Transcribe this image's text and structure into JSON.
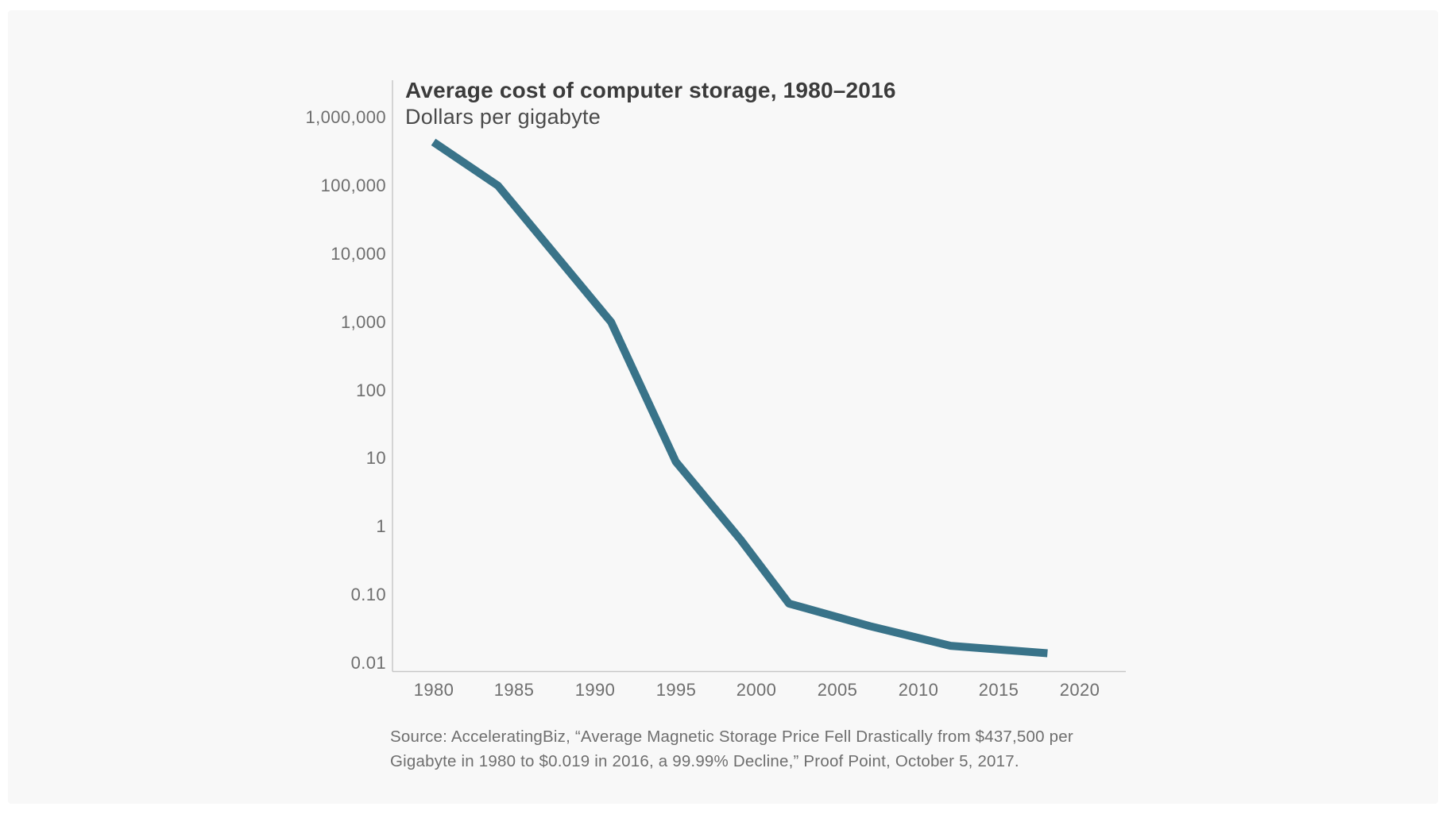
{
  "chart": {
    "title": "Average cost of computer storage, 1980–2016",
    "subtitle": "Dollars per gigabyte",
    "source_line1": "Source: AcceleratingBiz, “Average Magnetic Storage Price Fell Drastically from $437,500 per",
    "source_line2": "Gigabyte in 1980 to $0.019 in 2016, a 99.99% Decline,” Proof Point, October 5, 2017."
  },
  "chart_data": {
    "type": "line",
    "title": "Average cost of computer storage, 1980–2016",
    "subtitle": "Dollars per gigabyte",
    "series": [
      {
        "name": "Average cost of storage (dollars per gigabyte)",
        "x": [
          1980,
          1984,
          1991,
          1995,
          1999,
          2002,
          2007,
          2012,
          2018
        ],
        "y": [
          437500,
          100000,
          1000,
          9,
          0.65,
          0.075,
          0.035,
          0.018,
          0.014
        ]
      }
    ],
    "xlabel": "",
    "ylabel": "Dollars per gigabyte",
    "y_scale": "log",
    "ylim": [
      0.01,
      1000000
    ],
    "xlim": [
      1977.5,
      2022.8
    ],
    "grid": false,
    "legend": false,
    "x_tick_values": [
      1980,
      1985,
      1990,
      1995,
      2000,
      2005,
      2010,
      2015,
      2020
    ],
    "x_tick_labels": [
      "1980",
      "1985",
      "1990",
      "1995",
      "2000",
      "2005",
      "2010",
      "2015",
      "2020"
    ],
    "y_tick_values": [
      1000000,
      100000,
      10000,
      1000,
      100,
      10,
      1,
      0.1,
      0.01
    ],
    "y_tick_labels": [
      "1,000,000",
      "100,000",
      "10,000",
      "1,000",
      "100",
      "10",
      "1",
      "0.10",
      "0.01"
    ],
    "line_color": "#397389",
    "axis_color": "#c7c7c7",
    "background_color": "#f8f8f8"
  }
}
